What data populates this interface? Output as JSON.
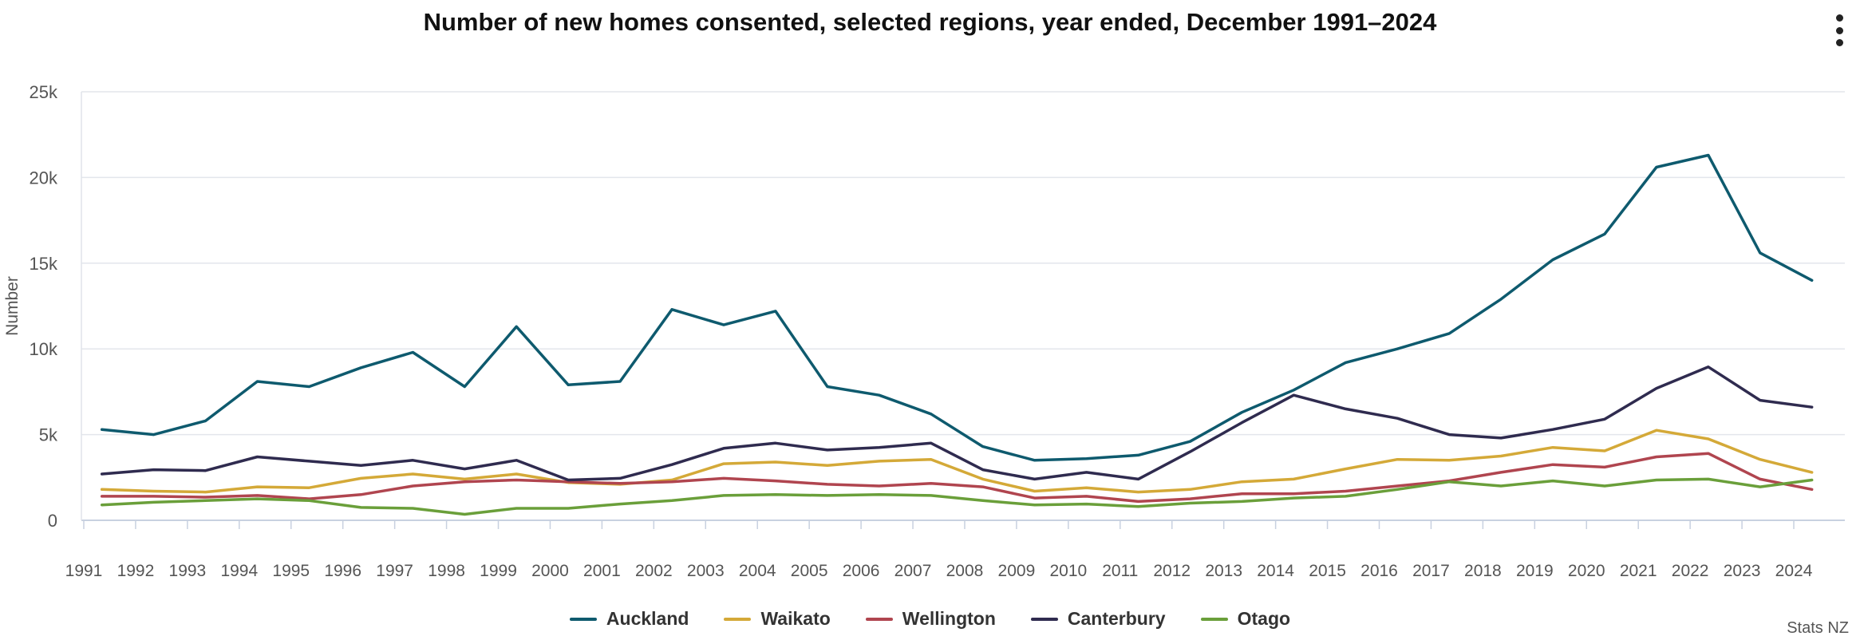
{
  "chart_menu_icon": "vertical-ellipsis-icon",
  "source_label": "Stats NZ",
  "chart_data": {
    "type": "line",
    "title": "Number of new homes consented, selected regions, year ended, December 1991–2024",
    "xlabel": "",
    "ylabel": "Number",
    "ylim": [
      0,
      25000
    ],
    "yticks": [
      0,
      5000,
      10000,
      15000,
      20000,
      25000
    ],
    "ytick_labels": [
      "0",
      "5k",
      "10k",
      "15k",
      "20k",
      "25k"
    ],
    "xticks": [
      1991,
      1992,
      1993,
      1994,
      1995,
      1996,
      1997,
      1998,
      1999,
      2000,
      2001,
      2002,
      2003,
      2004,
      2005,
      2006,
      2007,
      2008,
      2009,
      2010,
      2011,
      2012,
      2013,
      2014,
      2015,
      2016,
      2017,
      2018,
      2019,
      2020,
      2021,
      2022,
      2023,
      2024
    ],
    "xtick_labels": [
      "1991",
      "1992",
      "1993",
      "1994",
      "1995",
      "1996",
      "1997",
      "1998",
      "1999",
      "2000",
      "2001",
      "2002",
      "2003",
      "2004",
      "2005",
      "2006",
      "2007",
      "2008",
      "2009",
      "2010",
      "2011",
      "2012",
      "2013",
      "2014",
      "2015",
      "2016",
      "2017",
      "2018",
      "2019",
      "2020",
      "2021",
      "2022",
      "2023",
      "2024"
    ],
    "x": [
      "1991-12",
      "1992-12",
      "1993-12",
      "1994-12",
      "1995-12",
      "1996-12",
      "1997-12",
      "1998-12",
      "1999-12",
      "2000-12",
      "2001-12",
      "2002-12",
      "2003-12",
      "2004-12",
      "2005-12",
      "2006-12",
      "2007-12",
      "2008-12",
      "2009-12",
      "2010-12",
      "2011-12",
      "2012-12",
      "2013-12",
      "2014-12",
      "2015-12",
      "2016-12",
      "2017-12",
      "2018-12",
      "2019-12",
      "2020-12",
      "2021-12",
      "2022-12",
      "2023-12",
      "2024-12"
    ],
    "grid": true,
    "legend_position": "bottom-center",
    "series": [
      {
        "name": "Auckland",
        "color": "#0e5a6e",
        "values": [
          5300,
          5000,
          5800,
          8100,
          7800,
          8900,
          9800,
          7800,
          11300,
          7900,
          8100,
          12300,
          11400,
          12200,
          7800,
          7300,
          6200,
          4300,
          3500,
          3600,
          3800,
          4600,
          6300,
          7600,
          9200,
          10000,
          10900,
          12900,
          15200,
          16700,
          20600,
          21300,
          15600,
          14000
        ]
      },
      {
        "name": "Waikato",
        "color": "#d4a938",
        "values": [
          1800,
          1700,
          1650,
          1950,
          1900,
          2450,
          2700,
          2400,
          2700,
          2200,
          2100,
          2350,
          3300,
          3400,
          3200,
          3450,
          3550,
          2400,
          1700,
          1900,
          1650,
          1800,
          2250,
          2400,
          3000,
          3550,
          3500,
          3750,
          4250,
          4050,
          5250,
          4750,
          3550,
          2800
        ]
      },
      {
        "name": "Wellington",
        "color": "#b0454f",
        "values": [
          1400,
          1400,
          1350,
          1450,
          1250,
          1500,
          2000,
          2250,
          2350,
          2250,
          2150,
          2250,
          2450,
          2300,
          2100,
          2000,
          2150,
          1950,
          1300,
          1400,
          1100,
          1250,
          1550,
          1550,
          1700,
          2000,
          2300,
          2800,
          3250,
          3100,
          3700,
          3900,
          2400,
          1800
        ]
      },
      {
        "name": "Canterbury",
        "color": "#2f2b4f",
        "values": [
          2700,
          2950,
          2900,
          3700,
          3450,
          3200,
          3500,
          3000,
          3500,
          2350,
          2450,
          3250,
          4200,
          4500,
          4100,
          4250,
          4500,
          2950,
          2400,
          2800,
          2400,
          4000,
          5700,
          7300,
          6500,
          5950,
          5000,
          4800,
          5300,
          5900,
          7700,
          8950,
          7000,
          6600
        ]
      },
      {
        "name": "Otago",
        "color": "#6a9f3a",
        "values": [
          900,
          1050,
          1150,
          1250,
          1150,
          750,
          700,
          350,
          700,
          700,
          950,
          1150,
          1450,
          1500,
          1450,
          1500,
          1450,
          1150,
          900,
          950,
          800,
          1000,
          1100,
          1300,
          1400,
          1800,
          2250,
          2000,
          2300,
          2000,
          2350,
          2400,
          1950,
          2350
        ]
      }
    ]
  }
}
